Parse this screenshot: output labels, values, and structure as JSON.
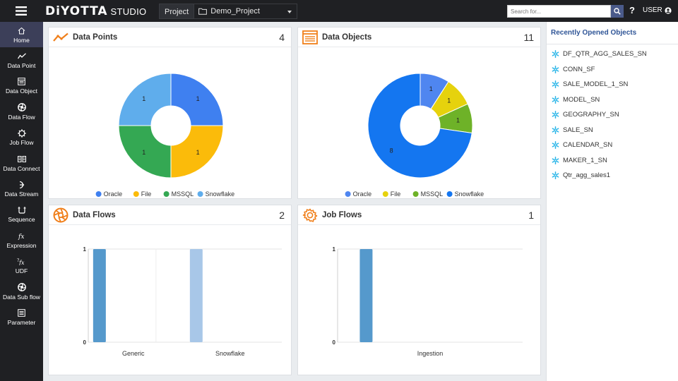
{
  "app": {
    "brand": "DiYOTTA",
    "sub": "STUDIO"
  },
  "project": {
    "label": "Project",
    "value": "Demo_Project"
  },
  "search": {
    "placeholder": "Search for..."
  },
  "help": "?",
  "user": {
    "label": "USER"
  },
  "sidebar": {
    "items": [
      {
        "label": "Home",
        "icon": "home-icon"
      },
      {
        "label": "Data Point",
        "icon": "trend-icon"
      },
      {
        "label": "Data Object",
        "icon": "table-icon"
      },
      {
        "label": "Data Flow",
        "icon": "aperture-icon"
      },
      {
        "label": "Job Flow",
        "icon": "gear-icon"
      },
      {
        "label": "Data Connect",
        "icon": "connect-icon"
      },
      {
        "label": "Data Stream",
        "icon": "stream-icon"
      },
      {
        "label": "Sequence",
        "icon": "sequence-icon"
      },
      {
        "label": "Expression",
        "icon": "fx-icon"
      },
      {
        "label": "UDF",
        "icon": "udf-icon"
      },
      {
        "label": "Data Sub flow",
        "icon": "subflow-icon"
      },
      {
        "label": "Parameter",
        "icon": "parameter-icon"
      }
    ]
  },
  "cards": {
    "data_points": {
      "title": "Data Points",
      "count": "4"
    },
    "data_objects": {
      "title": "Data Objects",
      "count": "11"
    },
    "data_flows": {
      "title": "Data Flows",
      "count": "2"
    },
    "job_flows": {
      "title": "Job Flows",
      "count": "1"
    }
  },
  "colors": {
    "oracle": "#3f80f0",
    "file": "#fbbb0a",
    "mssql": "#34a853",
    "snowflake": "#5fadec",
    "objects_oracle": "#4f86f0",
    "objects_file": "#e6d20d",
    "objects_mssql": "#6eb228",
    "objects_snowflake": "#1476f0",
    "bar_dark": "#5599cc",
    "bar_light": "#a8c7e8",
    "accent_orange": "#f07f1a",
    "sidebar_active": "#3c3f59"
  },
  "chart_data": [
    {
      "type": "pie",
      "donut": true,
      "categories": [
        "Oracle",
        "File",
        "MSSQL",
        "Snowflake"
      ],
      "values": [
        1,
        1,
        1,
        1
      ],
      "legend": "bottom"
    },
    {
      "type": "pie",
      "donut": true,
      "categories": [
        "Oracle",
        "File",
        "MSSQL",
        "Snowflake"
      ],
      "values": [
        1,
        1,
        1,
        8
      ],
      "legend": "bottom"
    },
    {
      "type": "bar",
      "categories": [
        "Generic",
        "Snowflake"
      ],
      "values": [
        1,
        1
      ],
      "ylim": [
        0,
        1
      ],
      "yticks": [
        "0",
        "1"
      ]
    },
    {
      "type": "bar",
      "categories": [
        "Ingestion"
      ],
      "values": [
        1
      ],
      "ylim": [
        0,
        1
      ],
      "yticks": [
        "0",
        "1"
      ]
    }
  ],
  "recent": {
    "title": "Recently Opened Objects",
    "items": [
      "DF_QTR_AGG_SALES_SN",
      "CONN_SF",
      "SALE_MODEL_1_SN",
      "MODEL_SN",
      "GEOGRAPHY_SN",
      "SALE_SN",
      "CALENDAR_SN",
      "MAKER_1_SN",
      "Qtr_agg_sales1"
    ]
  }
}
